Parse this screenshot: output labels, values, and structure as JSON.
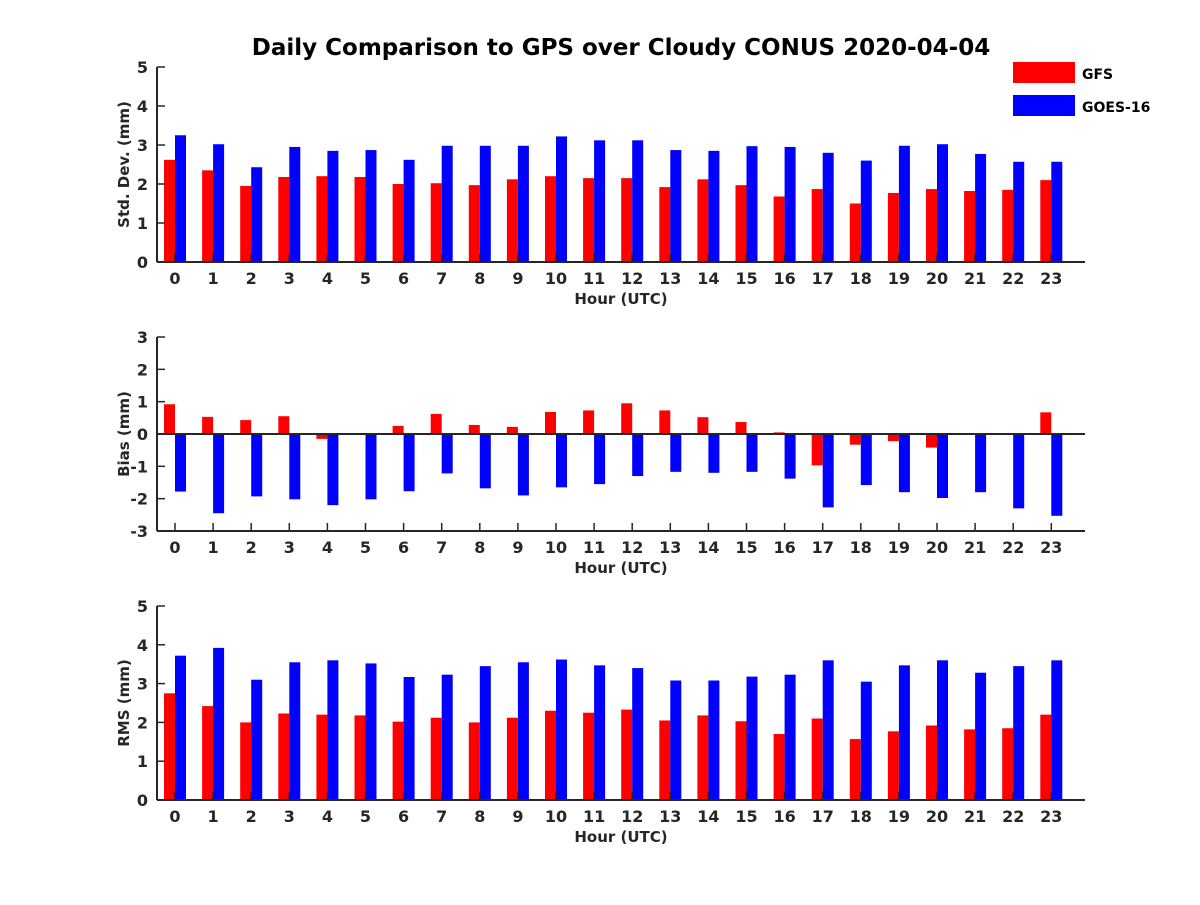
{
  "chart_data": {
    "type": "bar",
    "title": "Daily Comparison to GPS over Cloudy CONUS 2020-04-04",
    "legend": {
      "placement": "top-right",
      "entries": [
        {
          "name": "GFS",
          "color": "#ff0000"
        },
        {
          "name": "GOES-16",
          "color": "#0000ff"
        }
      ]
    },
    "categories": [
      "0",
      "1",
      "2",
      "3",
      "4",
      "5",
      "6",
      "7",
      "8",
      "9",
      "10",
      "11",
      "12",
      "13",
      "14",
      "15",
      "16",
      "17",
      "18",
      "19",
      "20",
      "21",
      "22",
      "23"
    ],
    "panels": [
      {
        "ylabel": "Std. Dev. (mm)",
        "xlabel": "Hour (UTC)",
        "ylim": [
          0,
          5
        ],
        "yticks": [
          "0",
          "1",
          "2",
          "3",
          "4",
          "5"
        ],
        "series": [
          {
            "name": "GFS",
            "values": [
              2.62,
              2.35,
              1.95,
              2.18,
              2.2,
              2.18,
              2.0,
              2.02,
              1.97,
              2.12,
              2.2,
              2.15,
              2.15,
              1.92,
              2.12,
              1.97,
              1.68,
              1.87,
              1.5,
              1.77,
              1.87,
              1.82,
              1.85,
              2.1
            ]
          },
          {
            "name": "GOES-16",
            "values": [
              3.25,
              3.02,
              2.43,
              2.95,
              2.85,
              2.87,
              2.62,
              2.98,
              2.98,
              2.98,
              3.22,
              3.12,
              3.12,
              2.87,
              2.85,
              2.97,
              2.95,
              2.8,
              2.6,
              2.98,
              3.02,
              2.77,
              2.57,
              2.57
            ]
          }
        ]
      },
      {
        "ylabel": "Bias (mm)",
        "xlabel": "Hour (UTC)",
        "ylim": [
          -3,
          3
        ],
        "yticks": [
          "-3",
          "-2",
          "-1",
          "0",
          "1",
          "2",
          "3"
        ],
        "series": [
          {
            "name": "GFS",
            "values": [
              0.92,
              0.53,
              0.43,
              0.55,
              -0.15,
              0.0,
              0.25,
              0.62,
              0.28,
              0.22,
              0.68,
              0.73,
              0.95,
              0.73,
              0.52,
              0.37,
              0.05,
              -0.97,
              -0.33,
              -0.22,
              -0.42,
              0.03,
              0.0,
              0.67
            ]
          },
          {
            "name": "GOES-16",
            "values": [
              -1.78,
              -2.45,
              -1.93,
              -2.02,
              -2.2,
              -2.02,
              -1.77,
              -1.22,
              -1.68,
              -1.9,
              -1.65,
              -1.55,
              -1.3,
              -1.17,
              -1.2,
              -1.17,
              -1.38,
              -2.27,
              -1.58,
              -1.8,
              -1.98,
              -1.8,
              -2.3,
              -2.53
            ]
          }
        ]
      },
      {
        "ylabel": "RMS (mm)",
        "xlabel": "Hour (UTC)",
        "ylim": [
          0,
          5
        ],
        "yticks": [
          "0",
          "1",
          "2",
          "3",
          "4",
          "5"
        ],
        "series": [
          {
            "name": "GFS",
            "values": [
              2.75,
              2.42,
              2.0,
              2.23,
              2.2,
              2.18,
              2.02,
              2.12,
              2.0,
              2.12,
              2.3,
              2.25,
              2.33,
              2.05,
              2.18,
              2.03,
              1.7,
              2.1,
              1.57,
              1.77,
              1.92,
              1.82,
              1.85,
              2.2
            ]
          },
          {
            "name": "GOES-16",
            "values": [
              3.72,
              3.92,
              3.1,
              3.55,
              3.6,
              3.52,
              3.17,
              3.23,
              3.45,
              3.55,
              3.62,
              3.47,
              3.4,
              3.08,
              3.08,
              3.18,
              3.23,
              3.6,
              3.05,
              3.47,
              3.6,
              3.28,
              3.45,
              3.6
            ]
          }
        ]
      }
    ]
  }
}
